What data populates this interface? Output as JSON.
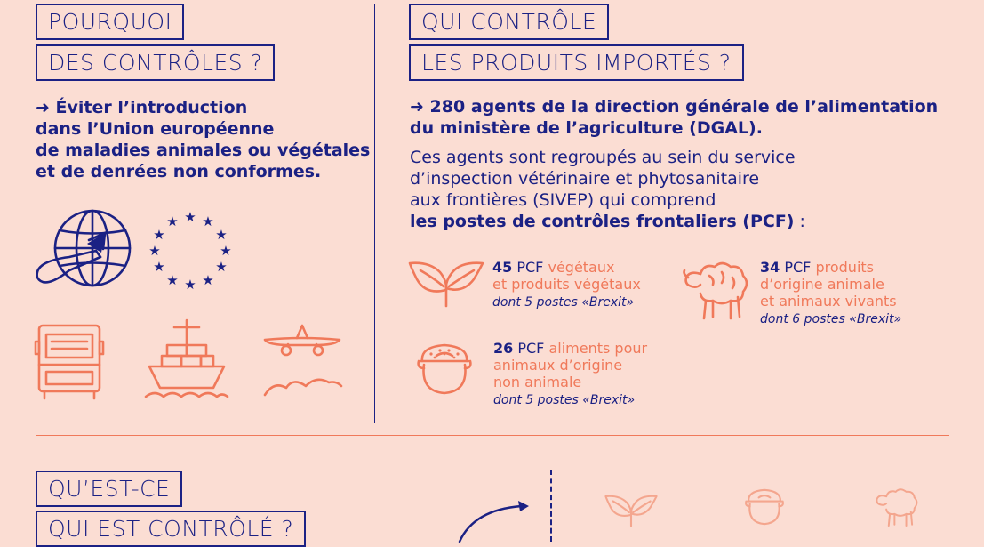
{
  "left": {
    "heading_line1": "POURQUOI",
    "heading_line2": "DES CONTRÔLES ?",
    "arrow": "➜",
    "text_lines": [
      "Éviter l’introduction",
      "dans l’Union européenne",
      "de maladies animales ou végétales",
      "et de denrées non conformes."
    ]
  },
  "right": {
    "heading_line1": "QUI CONTRÔLE",
    "heading_line2": "LES PRODUITS IMPORTÉS ?",
    "arrow": "➜",
    "lead_line1": "280 agents de la direction générale de l’alimentation",
    "lead_line2": "du ministère de l’agriculture (DGAL).",
    "para_line1": "Ces agents sont regroupés au sein du service",
    "para_line2": "d’inspection vétérinaire et phytosanitaire",
    "para_line3": "aux frontières (SIVEP) qui comprend",
    "para_bold": "les postes de contrôles frontaliers (PCF)",
    "para_colon": " :",
    "stats": {
      "plants": {
        "count": "45",
        "pcf": " PCF ",
        "label_line1": "végétaux",
        "label_line2": "et produits végétaux",
        "note": "dont 5 postes «Brexit»"
      },
      "animals": {
        "count": "34",
        "pcf": " PCF ",
        "label_line1": "produits",
        "label_line2": "d’origine animale",
        "label_line3": "et animaux vivants",
        "note": "dont 6 postes «Brexit»"
      },
      "feed": {
        "count": "26",
        "pcf": " PCF ",
        "label_line1": "aliments pour",
        "label_line2": "animaux d’origine",
        "label_line3": "non animale",
        "note": "dont 5 postes «Brexit»"
      }
    }
  },
  "bottom": {
    "heading_line1": "QU’EST-CE",
    "heading_line2": "QUI EST CONTRÔLÉ ?"
  },
  "colors": {
    "background": "#fbddd3",
    "navy": "#1b2184",
    "orange": "#f0795a",
    "light_orange": "#f4a68e"
  }
}
